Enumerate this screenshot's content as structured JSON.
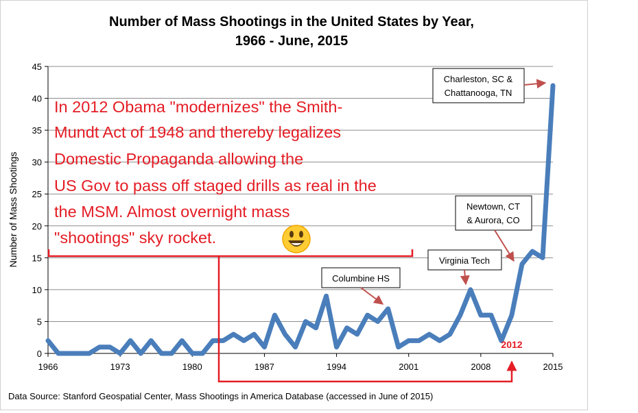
{
  "chart_data": {
    "type": "line",
    "title": "Number of Mass Shootings in the United States by Year, 1966 - June, 2015",
    "title_lines": [
      "Number of Mass Shootings in the United States by Year,",
      "1966 - June, 2015"
    ],
    "xlabel": "",
    "ylabel": "Number of Mass Shootings",
    "xlim": [
      1966,
      2015
    ],
    "ylim": [
      0,
      45
    ],
    "x_ticks": [
      1966,
      1973,
      1980,
      1987,
      1994,
      2001,
      2008,
      2015
    ],
    "y_ticks": [
      0,
      5,
      10,
      15,
      20,
      25,
      30,
      35,
      40,
      45
    ],
    "grid": "horizontal",
    "legend": "none",
    "series": [
      {
        "name": "",
        "color": "#4a7ebb",
        "x": [
          1966,
          1967,
          1968,
          1969,
          1970,
          1971,
          1972,
          1973,
          1974,
          1975,
          1976,
          1977,
          1978,
          1979,
          1980,
          1981,
          1982,
          1983,
          1984,
          1985,
          1986,
          1987,
          1988,
          1989,
          1990,
          1991,
          1992,
          1993,
          1994,
          1995,
          1996,
          1997,
          1998,
          1999,
          2000,
          2001,
          2002,
          2003,
          2004,
          2005,
          2006,
          2007,
          2008,
          2009,
          2010,
          2011,
          2012,
          2013,
          2014,
          2015
        ],
        "values": [
          2,
          0,
          0,
          0,
          0,
          1,
          1,
          0,
          2,
          0,
          2,
          0,
          0,
          2,
          0,
          0,
          2,
          2,
          3,
          2,
          3,
          1,
          6,
          3,
          1,
          5,
          4,
          9,
          1,
          4,
          3,
          6,
          5,
          7,
          1,
          2,
          2,
          3,
          2,
          3,
          6,
          10,
          6,
          6,
          2,
          6,
          14,
          16,
          15,
          42
        ]
      }
    ],
    "annotations": [
      {
        "text_lines": [
          "Columbine HS"
        ],
        "x": 1999,
        "y": 7
      },
      {
        "text_lines": [
          "Virginia Tech"
        ],
        "x": 2007,
        "y": 10
      },
      {
        "text_lines": [
          "Newtown, CT",
          "& Aurora, CO"
        ],
        "x": 2012,
        "y": 14
      },
      {
        "text_lines": [
          "Charleston, SC &",
          "Chattanooga, TN"
        ],
        "x": 2015,
        "y": 42
      }
    ],
    "source": "Data Source: Stanford Geospatial Center, Mass Shootings in America Database (accessed in June of 2015)"
  },
  "overlay": {
    "lines": [
      "In 2012 Obama \"modernizes\" the Smith-",
      "Mundt Act of 1948 and thereby legalizes",
      "Domestic Propaganda allowing the",
      "US Gov to pass off staged drills as real in the",
      "the MSM. Almost overnight mass",
      "\"shootings\" sky rocket."
    ],
    "emoji": "smiley-face-icon",
    "year_label": "2012",
    "color": "#e41c24"
  }
}
